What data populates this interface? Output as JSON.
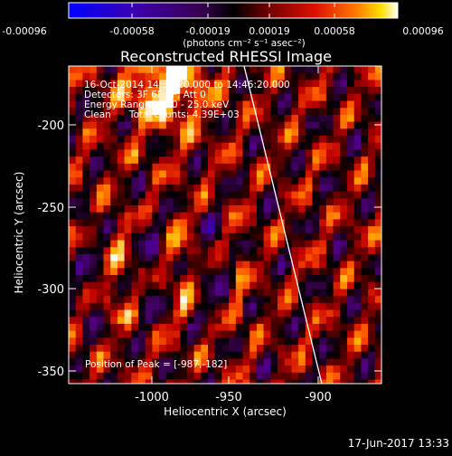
{
  "colorbar": {
    "tick_labels": [
      "-0.00096",
      "-0.00058",
      "-0.00019",
      "0.00019",
      "0.00058",
      "0.00096"
    ],
    "units_text": "(photons cm⁻² s⁻¹ asec⁻²)"
  },
  "plot": {
    "title": "Reconstructed RHESSI Image",
    "info_lines": [
      "16-Oct-2014 14:36:20.000 to 14:46:20.000",
      "Detectors: 3F 6F 9F, Att 0",
      "Energy Range: 12.0 - 25.0 keV",
      "Clean      Total counts: 4.39E+03"
    ],
    "peak_label": "Position of Peak = [-987,-182]",
    "xlabel": "Heliocentric X (arcsec)",
    "ylabel": "Heliocentric Y (arcsec)",
    "x_ticks": [
      "-1000",
      "-950",
      "-900"
    ],
    "y_ticks": [
      "-200",
      "-250",
      "-300",
      "-350"
    ]
  },
  "footer": {
    "timestamp": "17-Jun-2017 13:33"
  },
  "colors": {
    "background": "#000000",
    "foreground": "#ffffff",
    "colormap": [
      "#0000ff",
      "#3d00a8",
      "#500080",
      "#300040",
      "#000000",
      "#600000",
      "#c00000",
      "#ff5000",
      "#ffb400",
      "#ffffff"
    ]
  }
}
